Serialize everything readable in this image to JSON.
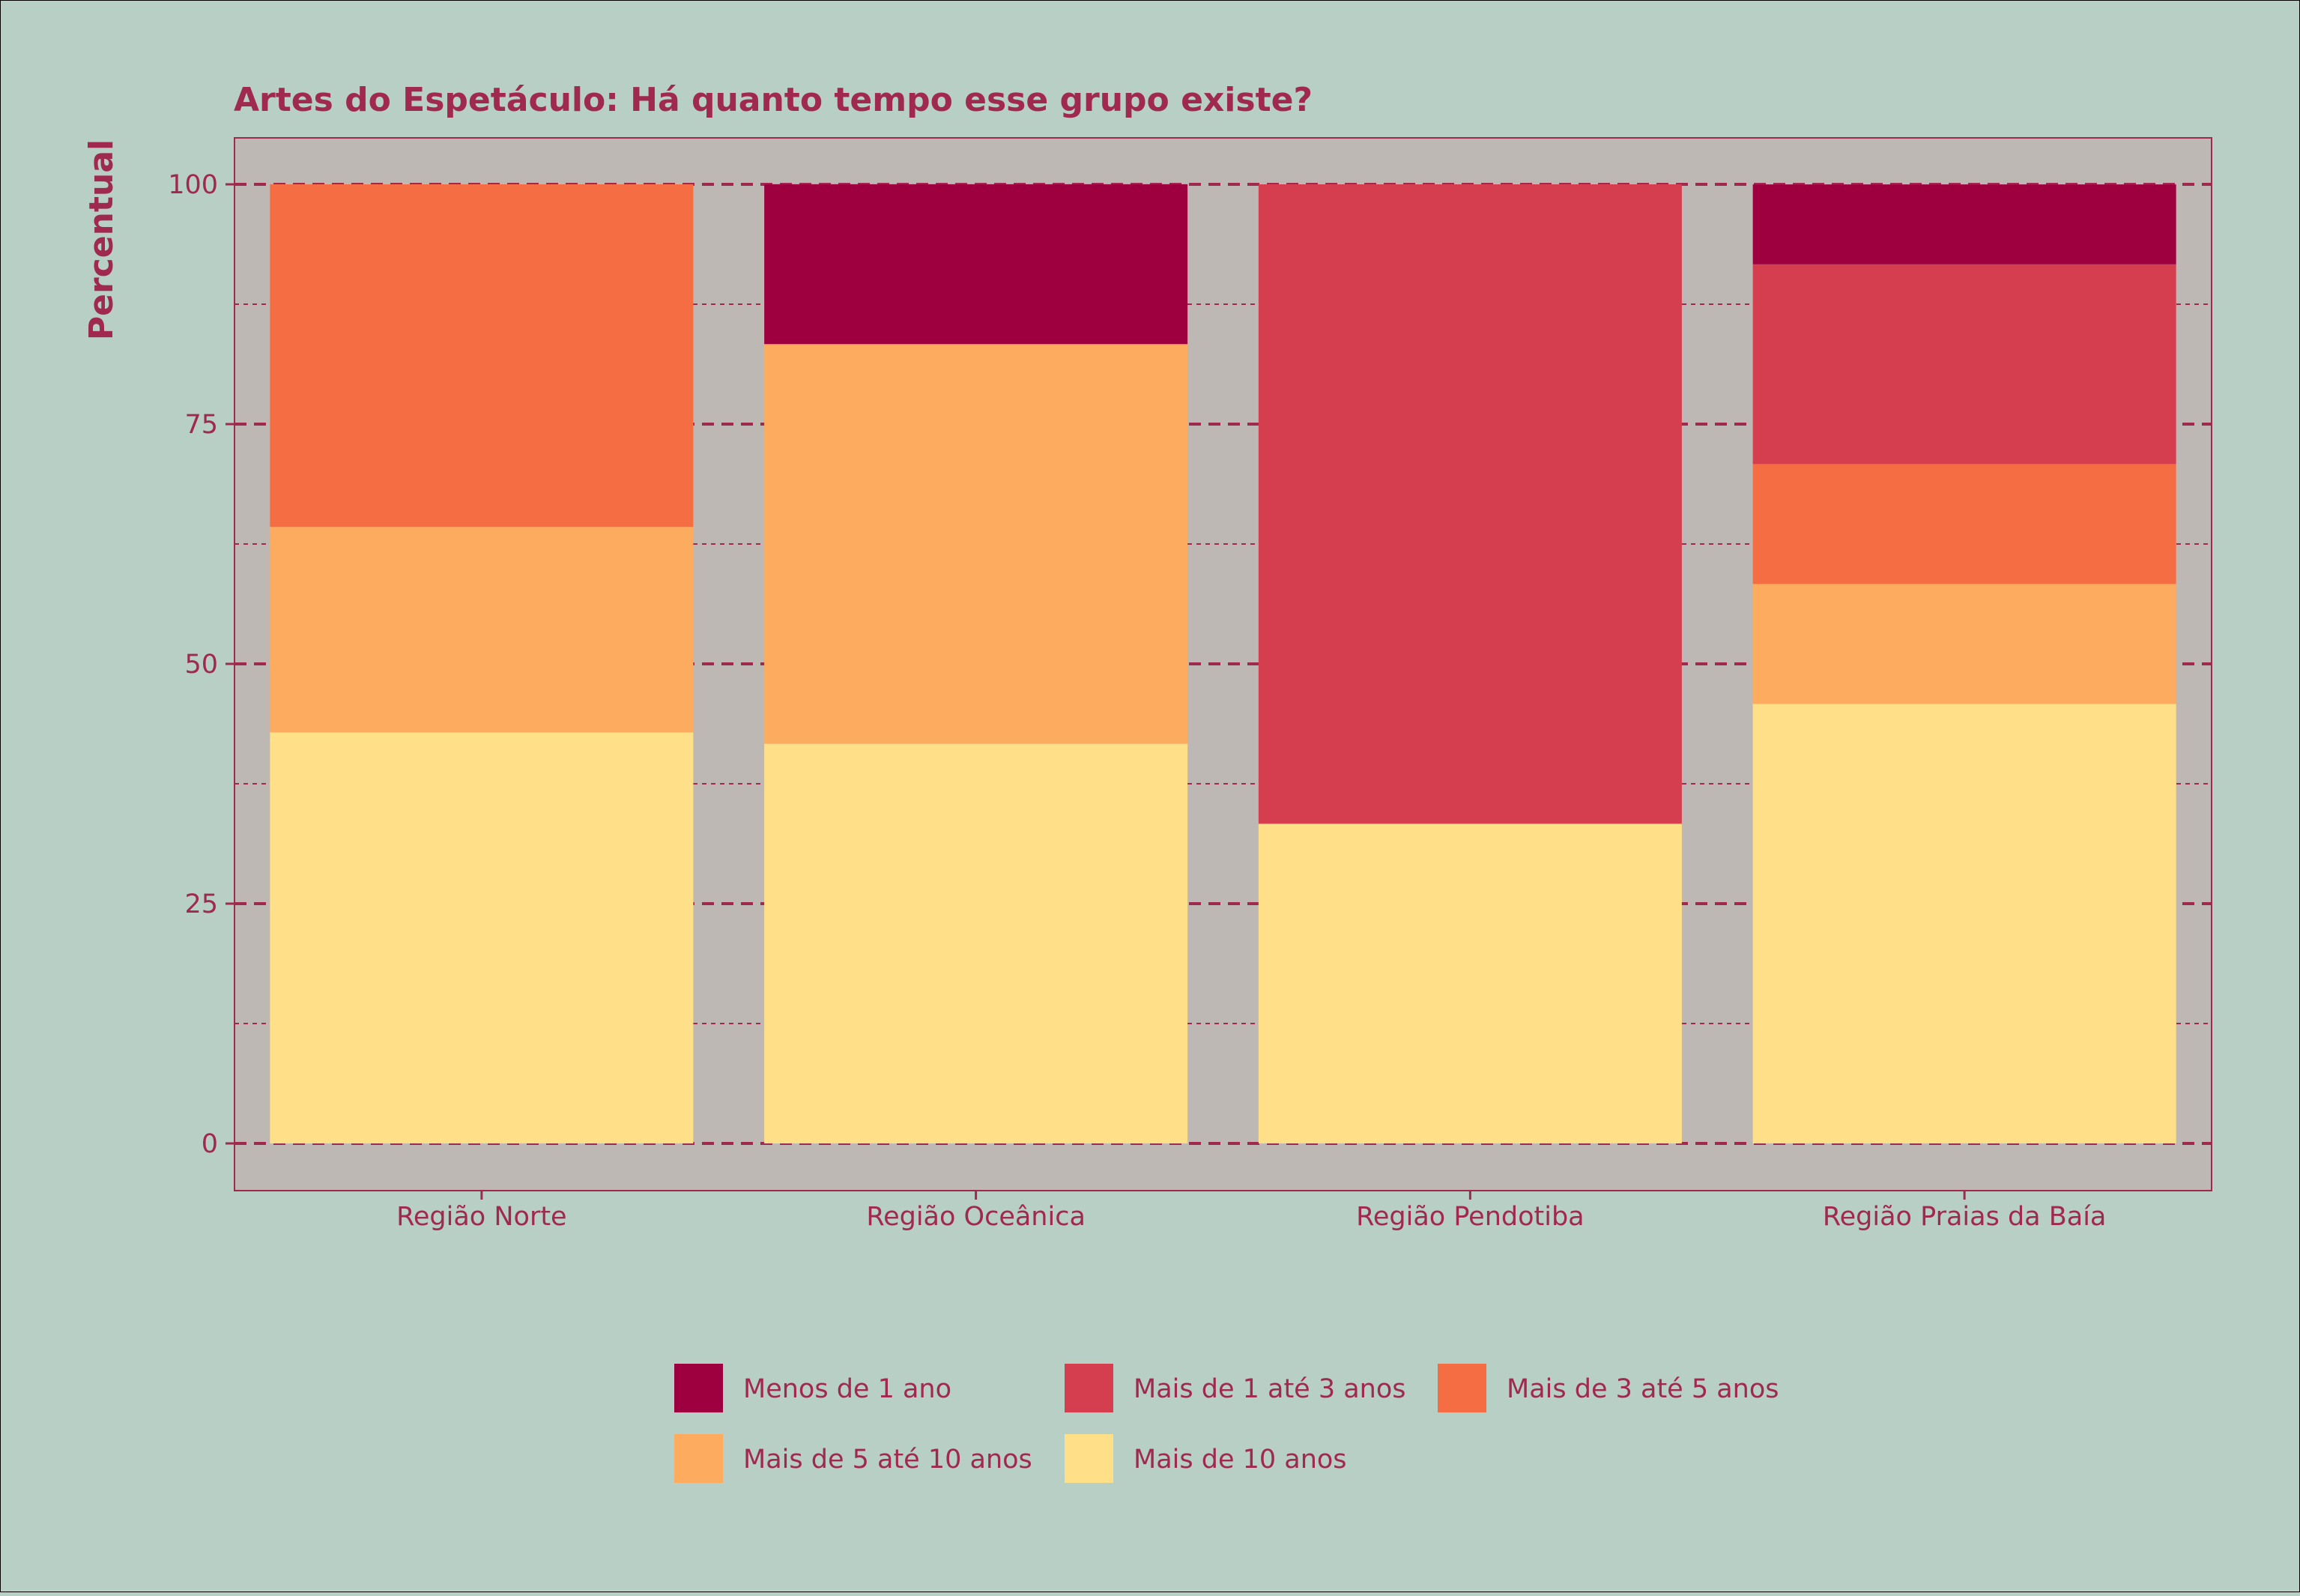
{
  "theme": {
    "background": "#b7cfc5",
    "panel": "#bdb8b4",
    "text": "#a0294f",
    "grid": "#a0294f"
  },
  "chart_data": {
    "type": "bar",
    "stacked": true,
    "title": "Artes do Espetáculo: Há quanto tempo esse grupo existe?",
    "xlabel": "",
    "ylabel": "Percentual",
    "ylim": [
      0,
      100
    ],
    "yticks": [
      0,
      25,
      50,
      75,
      100
    ],
    "ytick_labels": [
      "0",
      "25",
      "50",
      "75",
      "100"
    ],
    "grid": true,
    "legend_position": "bottom",
    "categories": [
      "Região Norte",
      "Região Oceânica",
      "Região Pendotiba",
      "Região Praias da Baía"
    ],
    "series": [
      {
        "name": "Mais de 10 anos",
        "color": "#ffdf87",
        "values": [
          42.86,
          41.67,
          33.33,
          45.83
        ]
      },
      {
        "name": "Mais de 5 até 10 anos",
        "color": "#fdac5f",
        "values": [
          21.43,
          41.67,
          0,
          12.5
        ]
      },
      {
        "name": "Mais de 3 até 5 anos",
        "color": "#f46d43",
        "values": [
          35.71,
          0,
          0,
          12.5
        ]
      },
      {
        "name": "Mais de 1 até 3 anos",
        "color": "#d53e4f",
        "values": [
          0,
          0,
          66.67,
          20.83
        ]
      },
      {
        "name": "Menos de 1 ano",
        "color": "#9e003f",
        "values": [
          0,
          16.67,
          0,
          8.33
        ]
      }
    ],
    "legend_order": [
      "Menos de 1 ano",
      "Mais de 1 até 3 anos",
      "Mais de 3 até 5 anos",
      "Mais de 5 até 10 anos",
      "Mais de 10 anos"
    ]
  }
}
